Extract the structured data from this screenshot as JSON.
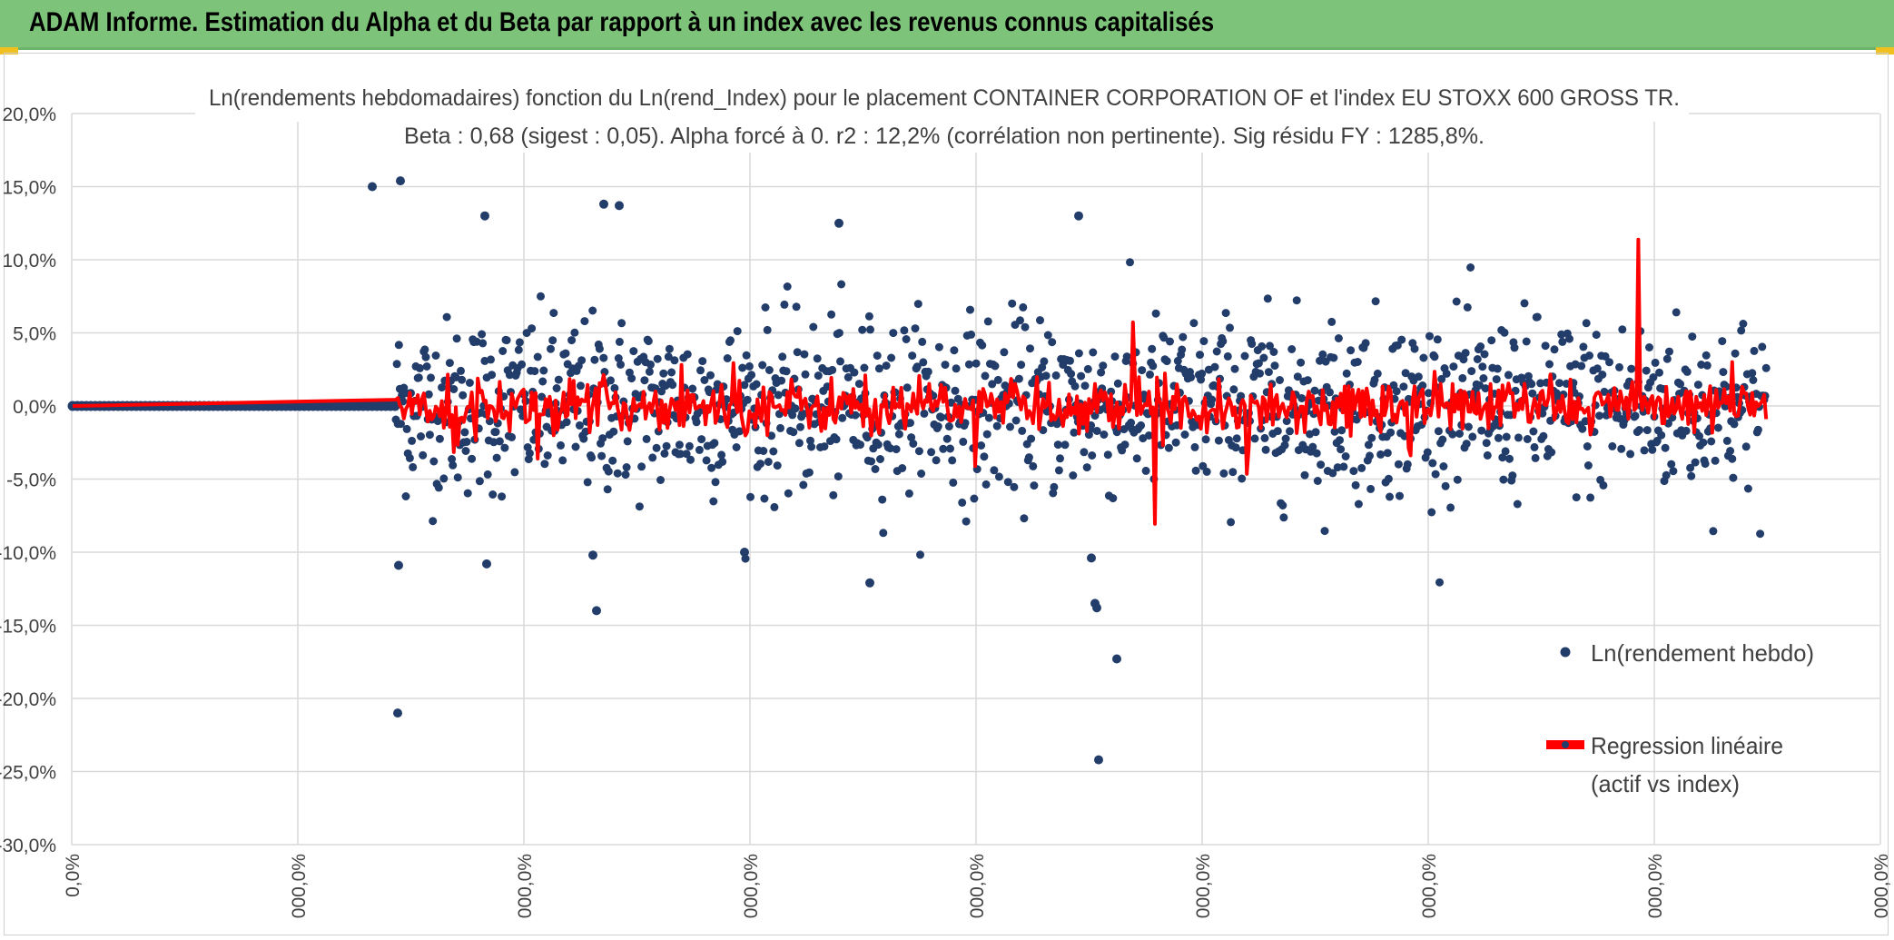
{
  "banner": {
    "title": "ADAM Informe. Estimation du Alpha et du Beta par rapport à un index avec les revenus connus capitalisés",
    "background": "#7dc47a"
  },
  "chart_data": {
    "type": "scatter",
    "title": "Ln(rendements hebdomadaires) fonction du Ln(rend_Index) pour le placement CONTAINER CORPORATION OF  et l'index EU STOXX 600 GROSS TR.",
    "subtitle": "Beta : 0,68 (sigest : 0,05). Alpha forcé à 0. r2 : 12,2% (corrélation non pertinente). Sig résidu FY : 1285,8%.",
    "ylim": [
      -30,
      20
    ],
    "yticks": [
      "20,0%",
      "15,0%",
      "10,0%",
      "5,0%",
      "0,0%",
      "-5,0%",
      "-10,0%",
      "-15,0%",
      "-20,0%",
      "-25,0%",
      "-30,0%"
    ],
    "xticks": [
      "0,0%",
      "000,0%",
      "000,0%",
      "000,0%",
      "000,0%",
      "000,0%",
      "000,0%",
      "000,0%",
      "000,0%"
    ],
    "grid": true,
    "legend_position": "right",
    "series": [
      {
        "name": "Ln(rendement hebdo)",
        "color": "#233d6b"
      },
      {
        "name": "Regression linéaire (actif vs index)",
        "color": "#ff0000"
      }
    ],
    "flat_segment": {
      "y": 0
    },
    "outliers": [
      [
        390,
        15.0
      ],
      [
        421,
        15.4
      ],
      [
        514,
        13.0
      ],
      [
        645,
        13.8
      ],
      [
        662,
        13.7
      ],
      [
        904,
        12.5
      ],
      [
        1168,
        13.0
      ],
      [
        418,
        -21.0
      ],
      [
        1190,
        -24.2
      ],
      [
        1210,
        -17.3
      ],
      [
        637,
        -14.0
      ],
      [
        1186,
        -13.5
      ],
      [
        1188,
        -13.8
      ],
      [
        938,
        -12.1
      ],
      [
        419,
        -10.9
      ],
      [
        633,
        -10.2
      ],
      [
        516,
        -10.8
      ],
      [
        1182,
        -10.4
      ],
      [
        800,
        -10.0
      ]
    ]
  },
  "legend": {
    "series1": "Ln(rendement hebdo)",
    "series2_line1": "Regression linéaire",
    "series2_line2": "(actif vs index)"
  }
}
